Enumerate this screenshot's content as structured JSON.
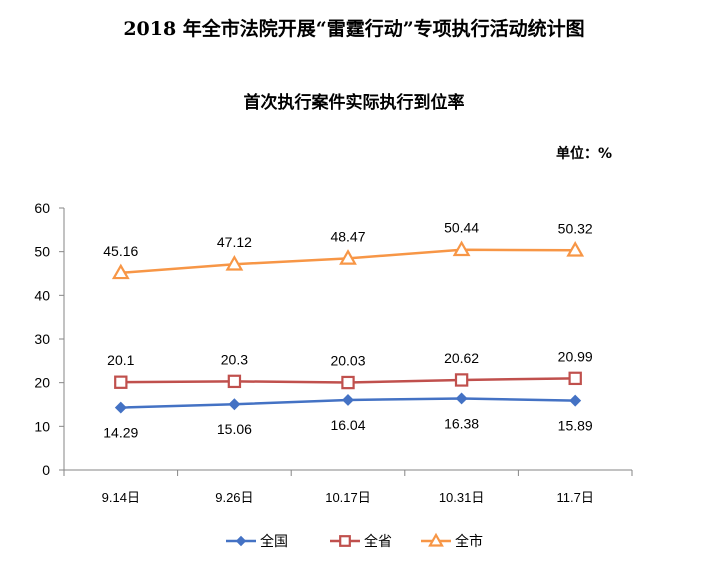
{
  "title": "2018 年全市法院开展“雷霆行动”专项执行活动统计图",
  "subtitle": "首次执行案件实际执行到位率",
  "unit_label": "单位：%",
  "chart_data": {
    "type": "line",
    "categories": [
      "9.14日",
      "9.26日",
      "10.17日",
      "10.31日",
      "11.7日"
    ],
    "ylim": [
      0,
      60
    ],
    "yticks": [
      0,
      10,
      20,
      30,
      40,
      50,
      60
    ],
    "grid": false,
    "legend_position": "bottom",
    "series": [
      {
        "name": "全国",
        "values": [
          14.29,
          15.06,
          16.04,
          16.38,
          15.89
        ],
        "labels": [
          "14.29",
          "15.06",
          "16.04",
          "16.38",
          "15.89"
        ],
        "color": "#4472C4",
        "marker": "diamond",
        "label_side": "below"
      },
      {
        "name": "全省",
        "values": [
          20.1,
          20.3,
          20.03,
          20.62,
          20.99
        ],
        "labels": [
          "20.1",
          "20.3",
          "20.03",
          "20.62",
          "20.99"
        ],
        "color": "#C0504D",
        "marker": "square",
        "label_side": "above"
      },
      {
        "name": "全市",
        "values": [
          45.16,
          47.12,
          48.47,
          50.44,
          50.32
        ],
        "labels": [
          "45.16",
          "47.12",
          "48.47",
          "50.44",
          "50.32"
        ],
        "color": "#F79646",
        "marker": "triangle",
        "label_side": "above"
      }
    ]
  }
}
